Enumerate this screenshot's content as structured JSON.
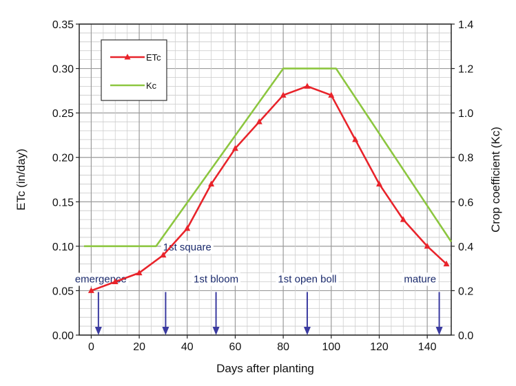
{
  "chart_data": {
    "type": "line",
    "title": "",
    "xlabel": "Days after planting",
    "ylabel_left": "ETc  (in/day)",
    "ylabel_right": "Crop coefficient (Kc)",
    "xlim": [
      -5,
      150
    ],
    "ylim_left": [
      0,
      0.35
    ],
    "ylim_right": [
      0,
      1.4
    ],
    "x_ticks": [
      0,
      20,
      40,
      60,
      80,
      100,
      120,
      140
    ],
    "y_left_ticks": [
      "0.00",
      "0.05",
      "0.10",
      "0.15",
      "0.20",
      "0.25",
      "0.30",
      "0.35"
    ],
    "y_right_ticks": [
      "0.0",
      "0.2",
      "0.4",
      "0.6",
      "0.8",
      "1.0",
      "1.2",
      "1.4"
    ],
    "grid": true,
    "legend_position": "top-left",
    "series": [
      {
        "name": "ETc",
        "axis": "left",
        "color": "#e8232a",
        "marker": "triangle",
        "x": [
          0,
          10,
          20,
          30,
          40,
          50,
          60,
          70,
          80,
          90,
          100,
          110,
          120,
          130,
          140,
          148
        ],
        "values": [
          0.05,
          0.06,
          0.07,
          0.09,
          0.12,
          0.17,
          0.21,
          0.24,
          0.27,
          0.28,
          0.27,
          0.22,
          0.17,
          0.13,
          0.1,
          0.08
        ]
      },
      {
        "name": "Kc",
        "axis": "right",
        "color": "#8cc63f",
        "x": [
          -3,
          27,
          80,
          102,
          150
        ],
        "values": [
          0.4,
          0.4,
          1.2,
          1.2,
          0.42
        ]
      }
    ],
    "annotations": [
      {
        "label": "emergence",
        "x": 3,
        "label_x": 4
      },
      {
        "label": "1st square",
        "x": 31,
        "label_x": 40
      },
      {
        "label": "1st bloom",
        "x": 52,
        "label_x": 52
      },
      {
        "label": "1st open boll",
        "x": 90,
        "label_x": 90
      },
      {
        "label": "mature",
        "x": 145,
        "label_x": 137
      }
    ]
  }
}
